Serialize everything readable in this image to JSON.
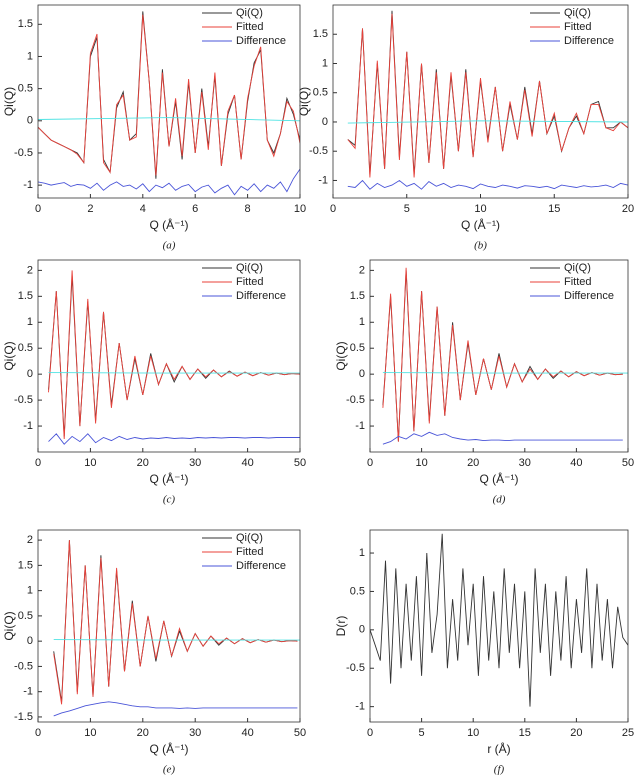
{
  "chart_data": [
    {
      "type": "line",
      "caption": "(a)",
      "x_label": "Q (Å⁻¹)",
      "y_label": "Qi(Q)",
      "legend": "upper right",
      "xlim": [
        0,
        10
      ],
      "ylim": [
        -1.2,
        1.8
      ],
      "xticks": [
        0,
        2,
        4,
        6,
        8,
        10
      ],
      "yticks": [
        -1,
        -0.5,
        0,
        0.5,
        1,
        1.5
      ],
      "x": [
        0,
        0.25,
        0.5,
        0.75,
        1,
        1.25,
        1.5,
        1.75,
        2,
        2.25,
        2.5,
        2.75,
        3,
        3.25,
        3.5,
        3.75,
        4,
        4.25,
        4.5,
        4.75,
        5,
        5.25,
        5.5,
        5.75,
        6,
        6.25,
        6.5,
        6.75,
        7,
        7.25,
        7.5,
        7.75,
        8,
        8.25,
        8.5,
        8.75,
        9,
        9.25,
        9.5,
        9.75,
        10
      ],
      "series": [
        {
          "name": "Qi(Q)",
          "color": "#333333",
          "values": [
            -0.1,
            -0.2,
            -0.3,
            -0.35,
            -0.4,
            -0.45,
            -0.5,
            -0.65,
            1.0,
            1.3,
            -0.6,
            -0.8,
            0.2,
            0.45,
            -0.3,
            -0.2,
            1.7,
            0.6,
            -0.9,
            0.8,
            -0.4,
            0.3,
            -0.6,
            0.6,
            -0.5,
            0.5,
            -0.4,
            0.7,
            -0.7,
            0.1,
            0.4,
            -0.6,
            0.3,
            0.9,
            1.1,
            -0.3,
            -0.5,
            -0.2,
            0.35,
            0.1,
            -0.3
          ]
        },
        {
          "name": "Fitted",
          "color": "#e8413a",
          "values": [
            -0.1,
            -0.2,
            -0.3,
            -0.35,
            -0.4,
            -0.45,
            -0.52,
            -0.65,
            1.05,
            1.35,
            -0.65,
            -0.8,
            0.25,
            0.4,
            -0.3,
            -0.25,
            1.65,
            0.6,
            -0.85,
            0.75,
            -0.4,
            0.35,
            -0.55,
            0.65,
            -0.5,
            0.45,
            -0.45,
            0.75,
            -0.7,
            0.15,
            0.4,
            -0.6,
            0.35,
            0.85,
            1.15,
            -0.3,
            -0.55,
            -0.2,
            0.3,
            0.15,
            -0.35
          ]
        },
        {
          "name": "Difference",
          "color": "#4a55d8",
          "values": [
            -0.95,
            -0.97,
            -1.0,
            -0.98,
            -0.96,
            -1.02,
            -0.99,
            -1.0,
            -1.05,
            -0.97,
            -1.08,
            -1.0,
            -0.95,
            -1.02,
            -1.0,
            -1.06,
            -0.98,
            -1.1,
            -1.0,
            -1.04,
            -0.97,
            -1.08,
            -1.02,
            -0.99,
            -1.1,
            -1.03,
            -1.0,
            -1.12,
            -1.05,
            -1.0,
            -1.15,
            -1.02,
            -1.08,
            -0.98,
            -1.1,
            -1.0,
            -1.05,
            -0.95,
            -1.1,
            -0.9,
            -0.75
          ]
        },
        {
          "color": "#4ee3e3",
          "x": [
            0,
            5,
            10
          ],
          "values": [
            0.02,
            0.05,
            0.0
          ]
        }
      ]
    },
    {
      "type": "line",
      "caption": "(b)",
      "x_label": "Q (Å⁻¹)",
      "y_label": "Qi(Q)",
      "legend": "upper right",
      "xlim": [
        0,
        20
      ],
      "ylim": [
        -1.3,
        2.0
      ],
      "xticks": [
        0,
        5,
        10,
        15,
        20
      ],
      "yticks": [
        -1,
        -0.5,
        0,
        0.5,
        1,
        1.5
      ],
      "x": [
        1,
        1.5,
        2,
        2.5,
        3,
        3.5,
        4,
        4.5,
        5,
        5.5,
        6,
        6.5,
        7,
        7.5,
        8,
        8.5,
        9,
        9.5,
        10,
        10.5,
        11,
        11.5,
        12,
        12.5,
        13,
        13.5,
        14,
        14.5,
        15,
        15.5,
        16,
        16.5,
        17,
        17.5,
        18,
        18.5,
        19,
        19.5,
        20
      ],
      "series": [
        {
          "name": "Qi(Q)",
          "color": "#333333",
          "values": [
            -0.3,
            -0.4,
            1.6,
            -0.9,
            1.0,
            -0.8,
            1.9,
            -0.6,
            1.2,
            -0.9,
            1.0,
            -0.7,
            0.9,
            -0.8,
            0.8,
            -0.5,
            0.9,
            -0.6,
            0.7,
            -0.3,
            0.6,
            -0.5,
            0.3,
            -0.3,
            0.6,
            -0.2,
            0.7,
            -0.2,
            0.1,
            -0.5,
            -0.1,
            0.1,
            -0.2,
            0.3,
            0.35,
            -0.1,
            -0.1,
            0.0,
            -0.1
          ]
        },
        {
          "name": "Fitted",
          "color": "#e8413a",
          "values": [
            -0.3,
            -0.45,
            1.6,
            -0.95,
            1.05,
            -0.8,
            1.85,
            -0.65,
            1.2,
            -0.95,
            1.0,
            -0.7,
            0.85,
            -0.8,
            0.85,
            -0.5,
            0.85,
            -0.6,
            0.75,
            -0.35,
            0.6,
            -0.5,
            0.35,
            -0.3,
            0.55,
            -0.25,
            0.7,
            -0.2,
            0.15,
            -0.5,
            -0.1,
            0.15,
            -0.2,
            0.3,
            0.3,
            -0.1,
            -0.15,
            0.0,
            -0.1
          ]
        },
        {
          "name": "Difference",
          "color": "#4a55d8",
          "values": [
            -1.1,
            -1.12,
            -1.0,
            -1.15,
            -1.05,
            -1.12,
            -1.08,
            -1.0,
            -1.1,
            -1.05,
            -1.15,
            -1.02,
            -1.1,
            -1.05,
            -1.12,
            -1.08,
            -1.1,
            -1.14,
            -1.06,
            -1.1,
            -1.12,
            -1.08,
            -1.1,
            -1.13,
            -1.09,
            -1.1,
            -1.12,
            -1.1,
            -1.14,
            -1.08,
            -1.1,
            -1.12,
            -1.09,
            -1.11,
            -1.1,
            -1.08,
            -1.12,
            -1.05,
            -1.08
          ]
        },
        {
          "color": "#4ee3e3",
          "x": [
            1,
            10,
            20
          ],
          "values": [
            -0.02,
            0.02,
            0.0
          ]
        }
      ]
    },
    {
      "type": "line",
      "caption": "(c)",
      "x_label": "Q (Å⁻¹)",
      "y_label": "Qi(Q)",
      "legend": "upper right",
      "xlim": [
        0,
        50
      ],
      "ylim": [
        -1.5,
        2.2
      ],
      "xticks": [
        0,
        10,
        20,
        30,
        40,
        50
      ],
      "yticks": [
        -1,
        -0.5,
        0,
        0.5,
        1,
        1.5,
        2
      ],
      "x": [
        2,
        3.5,
        5,
        6.5,
        8,
        9.5,
        11,
        12.5,
        14,
        15.5,
        17,
        18.5,
        20,
        21.5,
        23,
        24.5,
        26,
        27.5,
        29,
        30.5,
        32,
        33.5,
        35,
        36.5,
        38,
        39.5,
        41,
        42.5,
        44,
        45.5,
        47,
        48.5,
        50
      ],
      "series": [
        {
          "name": "Qi(Q)",
          "color": "#333333",
          "values": [
            -0.3,
            1.6,
            -1.2,
            1.9,
            -1.0,
            1.4,
            -0.9,
            1.2,
            -0.6,
            0.6,
            -0.5,
            0.3,
            -0.4,
            0.4,
            -0.2,
            0.2,
            -0.15,
            0.15,
            -0.1,
            0.1,
            -0.08,
            0.08,
            -0.05,
            0.06,
            -0.04,
            0.04,
            -0.03,
            0.03,
            -0.02,
            0.02,
            -0.01,
            0.01,
            0.0
          ]
        },
        {
          "name": "Fitted",
          "color": "#e8413a",
          "values": [
            -0.35,
            1.6,
            -1.25,
            2.0,
            -1.0,
            1.45,
            -0.95,
            1.2,
            -0.65,
            0.6,
            -0.5,
            0.35,
            -0.4,
            0.35,
            -0.2,
            0.2,
            -0.1,
            0.15,
            -0.1,
            0.1,
            -0.05,
            0.08,
            -0.05,
            0.05,
            -0.04,
            0.04,
            -0.03,
            0.03,
            -0.02,
            0.02,
            -0.01,
            0.01,
            0.0
          ]
        },
        {
          "name": "Difference",
          "color": "#4a55d8",
          "values": [
            -1.3,
            -1.15,
            -1.35,
            -1.2,
            -1.3,
            -1.15,
            -1.32,
            -1.22,
            -1.28,
            -1.2,
            -1.26,
            -1.22,
            -1.25,
            -1.23,
            -1.24,
            -1.22,
            -1.24,
            -1.23,
            -1.24,
            -1.22,
            -1.23,
            -1.22,
            -1.23,
            -1.22,
            -1.22,
            -1.23,
            -1.22,
            -1.22,
            -1.23,
            -1.22,
            -1.22,
            -1.22,
            -1.22
          ]
        },
        {
          "color": "#4ee3e3",
          "x": [
            2,
            25,
            50
          ],
          "values": [
            0.03,
            0.02,
            0.02
          ]
        }
      ]
    },
    {
      "type": "line",
      "caption": "(d)",
      "x_label": "Q (Å⁻¹)",
      "y_label": "Qi(Q)",
      "legend": "upper right",
      "xlim": [
        0,
        50
      ],
      "ylim": [
        -1.5,
        2.2
      ],
      "xticks": [
        0,
        10,
        20,
        30,
        40,
        50
      ],
      "yticks": [
        -1,
        -0.5,
        0,
        0.5,
        1,
        1.5,
        2
      ],
      "x": [
        2.5,
        4,
        5.5,
        7,
        8.5,
        10,
        11.5,
        13,
        14.5,
        16,
        17.5,
        19,
        20.5,
        22,
        23.5,
        25,
        26.5,
        28,
        29.5,
        31,
        32.5,
        34,
        35.5,
        37,
        38.5,
        40,
        41.5,
        43,
        44.5,
        46,
        47.5,
        49
      ],
      "series": [
        {
          "name": "Qi(Q)",
          "color": "#333333",
          "values": [
            -0.6,
            1.5,
            -1.3,
            2.0,
            -1.1,
            1.6,
            -0.9,
            1.3,
            -0.8,
            1.0,
            -0.5,
            0.6,
            -0.4,
            0.3,
            -0.3,
            0.4,
            -0.25,
            0.2,
            -0.15,
            0.15,
            -0.1,
            0.1,
            -0.08,
            0.06,
            -0.05,
            0.05,
            -0.03,
            0.03,
            -0.02,
            0.02,
            -0.01,
            0.0
          ]
        },
        {
          "name": "Fitted",
          "color": "#e8413a",
          "values": [
            -0.65,
            1.55,
            -1.3,
            2.05,
            -1.1,
            1.6,
            -0.95,
            1.3,
            -0.8,
            0.95,
            -0.5,
            0.65,
            -0.4,
            0.3,
            -0.3,
            0.35,
            -0.25,
            0.2,
            -0.15,
            0.1,
            -0.1,
            0.1,
            -0.05,
            0.06,
            -0.05,
            0.05,
            -0.03,
            0.03,
            -0.02,
            0.02,
            -0.01,
            0.0
          ]
        },
        {
          "name": "Difference",
          "color": "#4a55d8",
          "values": [
            -1.35,
            -1.3,
            -1.2,
            -1.25,
            -1.15,
            -1.2,
            -1.12,
            -1.18,
            -1.15,
            -1.22,
            -1.25,
            -1.27,
            -1.26,
            -1.28,
            -1.27,
            -1.27,
            -1.28,
            -1.27,
            -1.27,
            -1.27,
            -1.27,
            -1.27,
            -1.27,
            -1.27,
            -1.27,
            -1.27,
            -1.27,
            -1.27,
            -1.27,
            -1.27,
            -1.27,
            -1.27
          ]
        },
        {
          "color": "#4ee3e3",
          "x": [
            2.5,
            25,
            50
          ],
          "values": [
            0.03,
            0.02,
            0.02
          ]
        }
      ]
    },
    {
      "type": "line",
      "caption": "(e)",
      "x_label": "Q (Å⁻¹)",
      "y_label": "Qi(Q)",
      "legend": "upper right",
      "xlim": [
        0,
        50
      ],
      "ylim": [
        -1.6,
        2.2
      ],
      "xticks": [
        0,
        10,
        20,
        30,
        40,
        50
      ],
      "yticks": [
        -1.5,
        -1,
        -0.5,
        0,
        0.5,
        1,
        1.5,
        2
      ],
      "x": [
        3,
        4.5,
        6,
        7.5,
        9,
        10.5,
        12,
        13.5,
        15,
        16.5,
        18,
        19.5,
        21,
        22.5,
        24,
        25.5,
        27,
        28.5,
        30,
        31.5,
        33,
        34.5,
        36,
        37.5,
        39,
        40.5,
        42,
        43.5,
        45,
        46.5,
        48,
        49.5
      ],
      "series": [
        {
          "name": "Qi(Q)",
          "color": "#333333",
          "values": [
            -0.2,
            -1.2,
            2.0,
            -1.0,
            1.5,
            -1.1,
            1.7,
            -0.9,
            1.4,
            -0.6,
            0.8,
            -0.5,
            0.5,
            -0.4,
            0.4,
            -0.3,
            0.2,
            -0.2,
            0.15,
            -0.1,
            0.1,
            -0.08,
            0.06,
            -0.05,
            0.05,
            -0.03,
            0.03,
            -0.02,
            0.02,
            -0.01,
            0.01,
            0.0
          ]
        },
        {
          "name": "Fitted",
          "color": "#e8413a",
          "values": [
            -0.25,
            -1.25,
            2.0,
            -1.05,
            1.5,
            -1.1,
            1.65,
            -0.9,
            1.45,
            -0.6,
            0.75,
            -0.5,
            0.5,
            -0.35,
            0.4,
            -0.3,
            0.25,
            -0.2,
            0.15,
            -0.1,
            0.1,
            -0.05,
            0.06,
            -0.05,
            0.05,
            -0.03,
            0.03,
            -0.02,
            0.02,
            -0.01,
            0.01,
            0.0
          ]
        },
        {
          "name": "Difference",
          "color": "#4a55d8",
          "values": [
            -1.48,
            -1.42,
            -1.38,
            -1.33,
            -1.28,
            -1.25,
            -1.22,
            -1.2,
            -1.22,
            -1.25,
            -1.28,
            -1.3,
            -1.3,
            -1.32,
            -1.32,
            -1.32,
            -1.33,
            -1.32,
            -1.33,
            -1.32,
            -1.32,
            -1.32,
            -1.32,
            -1.32,
            -1.32,
            -1.32,
            -1.32,
            -1.32,
            -1.32,
            -1.32,
            -1.32,
            -1.32
          ]
        },
        {
          "color": "#4ee3e3",
          "x": [
            3,
            25,
            50
          ],
          "values": [
            0.03,
            0.02,
            0.02
          ]
        }
      ]
    },
    {
      "type": "line",
      "caption": "(f)",
      "x_label": "r (Å)",
      "y_label": "D(r)",
      "xlim": [
        0,
        25
      ],
      "ylim": [
        -1.2,
        1.3
      ],
      "xticks": [
        0,
        5,
        10,
        15,
        20,
        25
      ],
      "yticks": [
        -1,
        -0.5,
        0,
        0.5,
        1
      ],
      "x": [
        0,
        0.5,
        1,
        1.5,
        2,
        2.5,
        3,
        3.5,
        4,
        4.5,
        5,
        5.5,
        6,
        6.5,
        7,
        7.5,
        8,
        8.5,
        9,
        9.5,
        10,
        10.5,
        11,
        11.5,
        12,
        12.5,
        13,
        13.5,
        14,
        14.5,
        15,
        15.5,
        16,
        16.5,
        17,
        17.5,
        18,
        18.5,
        19,
        19.5,
        20,
        20.5,
        21,
        21.5,
        22,
        22.5,
        23,
        23.5,
        24,
        24.5,
        25
      ],
      "series": [
        {
          "color": "#333333",
          "values": [
            0,
            -0.2,
            -0.4,
            0.9,
            -0.7,
            0.8,
            -0.5,
            0.6,
            -0.4,
            0.7,
            -0.6,
            1.0,
            -0.3,
            0.2,
            1.25,
            -0.5,
            0.4,
            -0.4,
            0.8,
            -0.2,
            0.6,
            -0.6,
            0.7,
            -0.4,
            0.5,
            -0.5,
            0.8,
            -0.3,
            0.6,
            -0.5,
            0.5,
            -1.0,
            0.8,
            -0.3,
            0.6,
            -0.6,
            0.5,
            -0.4,
            0.7,
            -0.5,
            0.4,
            -0.3,
            0.8,
            -0.5,
            0.6,
            -0.4,
            0.4,
            -0.5,
            0.3,
            -0.1,
            -0.2
          ]
        }
      ]
    }
  ]
}
